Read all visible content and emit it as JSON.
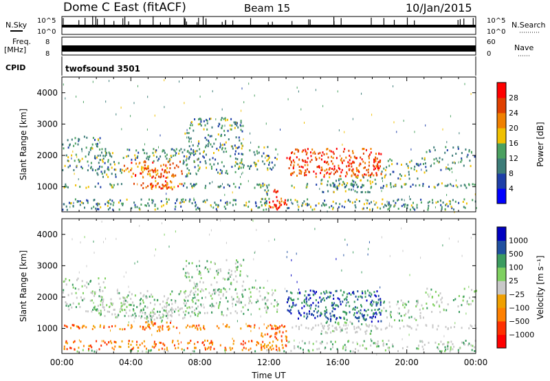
{
  "header": {
    "station": "Dome C East (fitACF)",
    "beam": "Beam 15",
    "date": "10/Jan/2015"
  },
  "status_panels": {
    "nsky_label": "N.Sky",
    "nsky_ticks": [
      "10^5",
      "10^0"
    ],
    "nsearch_label": "N.Search",
    "freq_label_top": "Freq.",
    "freq_label_unit": "[MHz]",
    "freq_ticks": [
      "8",
      "8"
    ],
    "nave_label": "Nave",
    "nave_ticks": [
      "60",
      "0"
    ],
    "cpid_label": "CPID",
    "cpid_value": "twofsound 3501"
  },
  "colors": {
    "power": [
      "#0000ff",
      "#1e3fa8",
      "#3c7c78",
      "#4aa060",
      "#f0c000",
      "#f08000",
      "#e04000",
      "#ff0000"
    ],
    "velocity": [
      "#ff0000",
      "#ff3000",
      "#ff8000",
      "#f0a000",
      "#c8c8c8",
      "#7fd060",
      "#3c9c60",
      "#2050a0",
      "#0000c0"
    ]
  },
  "chart_data": [
    {
      "type": "heatmap",
      "name": "power",
      "xlabel": "",
      "ylabel": "Slant Range [km]",
      "xlim": [
        0,
        24
      ],
      "ylim": [
        200,
        4500
      ],
      "yticks": [
        "1000",
        "2000",
        "3000",
        "4000"
      ],
      "colorbar_label": "Power [dB]",
      "colorbar_ticks": [
        "4",
        "8",
        "12",
        "16",
        "20",
        "24",
        "28"
      ],
      "colorbar_range": [
        0,
        32
      ]
    },
    {
      "type": "heatmap",
      "name": "velocity",
      "xlabel": "Time UT",
      "ylabel": "Slant Range [km]",
      "xlim": [
        0,
        24
      ],
      "ylim": [
        200,
        4500
      ],
      "xticks": [
        "00:00",
        "04:00",
        "08:00",
        "12:00",
        "16:00",
        "20:00",
        "00:00"
      ],
      "yticks": [
        "1000",
        "2000",
        "3000",
        "4000"
      ],
      "colorbar_label": "Velocity [m s⁻¹]",
      "colorbar_ticks": [
        "1000",
        "500",
        "100",
        "25",
        "−25",
        "−100",
        "−500",
        "−1000"
      ]
    }
  ]
}
